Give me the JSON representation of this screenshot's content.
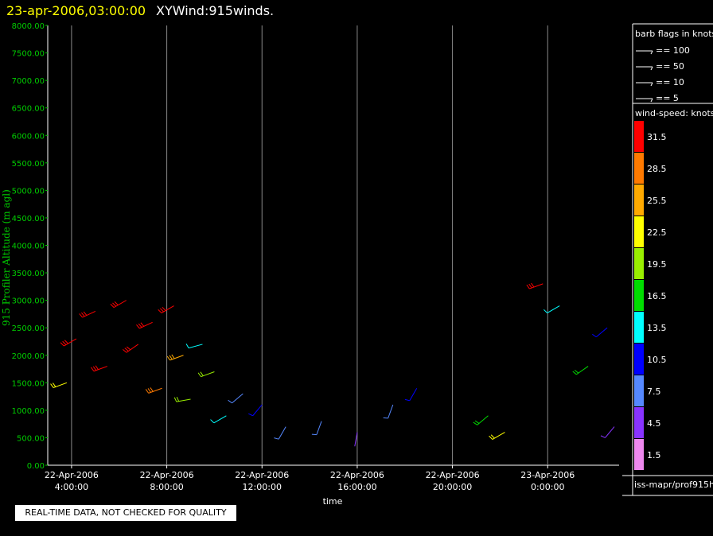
{
  "title": {
    "date": "23-apr-2006,03:00:00",
    "main": "XYWind:915winds."
  },
  "chart_data": {
    "type": "scatter",
    "ylabel": "915 Profiler Altitude (m agl)",
    "xlabel": "time",
    "ylim": [
      0,
      8000
    ],
    "yticks": [
      "0.00",
      "500.00",
      "1000.00",
      "1500.00",
      "2000.00",
      "2500.00",
      "3000.00",
      "3500.00",
      "4000.00",
      "4500.00",
      "5000.00",
      "5500.00",
      "6000.00",
      "6500.00",
      "7000.00",
      "7500.00",
      "8000.00"
    ],
    "xticks": [
      {
        "date": "22-Apr-2006",
        "time": "4:00:00"
      },
      {
        "date": "22-Apr-2006",
        "time": "8:00:00"
      },
      {
        "date": "22-Apr-2006",
        "time": "12:00:00"
      },
      {
        "date": "22-Apr-2006",
        "time": "16:00:00"
      },
      {
        "date": "22-Apr-2006",
        "time": "20:00:00"
      },
      {
        "date": "23-Apr-2006",
        "time": "0:00:00"
      }
    ],
    "xlim_hours": [
      3.0,
      27.0
    ],
    "grid": "vertical",
    "series": [
      {
        "x": 3.8,
        "y": 1500,
        "speed": 22,
        "dir": 250
      },
      {
        "x": 4.2,
        "y": 2300,
        "speed": 31,
        "dir": 240
      },
      {
        "x": 5.0,
        "y": 2800,
        "speed": 32,
        "dir": 245
      },
      {
        "x": 5.5,
        "y": 1800,
        "speed": 30,
        "dir": 250
      },
      {
        "x": 6.3,
        "y": 3000,
        "speed": 32,
        "dir": 240
      },
      {
        "x": 6.8,
        "y": 2200,
        "speed": 31,
        "dir": 235
      },
      {
        "x": 7.4,
        "y": 2600,
        "speed": 32,
        "dir": 245
      },
      {
        "x": 7.8,
        "y": 1400,
        "speed": 28,
        "dir": 250
      },
      {
        "x": 8.3,
        "y": 2900,
        "speed": 31,
        "dir": 240
      },
      {
        "x": 8.7,
        "y": 2000,
        "speed": 26,
        "dir": 250
      },
      {
        "x": 9.0,
        "y": 1200,
        "speed": 20,
        "dir": 260
      },
      {
        "x": 9.5,
        "y": 2200,
        "speed": 14,
        "dir": 255
      },
      {
        "x": 10.0,
        "y": 1700,
        "speed": 19,
        "dir": 250
      },
      {
        "x": 10.5,
        "y": 900,
        "speed": 12,
        "dir": 240
      },
      {
        "x": 11.2,
        "y": 1300,
        "speed": 8,
        "dir": 230
      },
      {
        "x": 12.0,
        "y": 1100,
        "speed": 9,
        "dir": 220
      },
      {
        "x": 13.0,
        "y": 700,
        "speed": 6,
        "dir": 210
      },
      {
        "x": 14.5,
        "y": 800,
        "speed": 7,
        "dir": 200
      },
      {
        "x": 16.0,
        "y": 600,
        "speed": 3,
        "dir": 190
      },
      {
        "x": 17.5,
        "y": 1100,
        "speed": 8,
        "dir": 200
      },
      {
        "x": 18.5,
        "y": 1400,
        "speed": 11,
        "dir": 210
      },
      {
        "x": 21.5,
        "y": 900,
        "speed": 15,
        "dir": 230
      },
      {
        "x": 22.2,
        "y": 600,
        "speed": 23,
        "dir": 240
      },
      {
        "x": 23.8,
        "y": 3300,
        "speed": 32,
        "dir": 250
      },
      {
        "x": 24.5,
        "y": 2900,
        "speed": 12,
        "dir": 240
      },
      {
        "x": 25.7,
        "y": 1800,
        "speed": 16,
        "dir": 235
      },
      {
        "x": 26.5,
        "y": 2500,
        "speed": 11,
        "dir": 230
      },
      {
        "x": 26.8,
        "y": 700,
        "speed": 5,
        "dir": 220
      }
    ]
  },
  "legend": {
    "barb_title": "barb flags in knots",
    "barb_items": [
      "== 100",
      "== 50",
      "== 10",
      "== 5"
    ],
    "speed_title": "wind-speed: knots",
    "speed_items": [
      {
        "label": "31.5",
        "color": "#ff0000"
      },
      {
        "label": "28.5",
        "color": "#ff7a00"
      },
      {
        "label": "25.5",
        "color": "#ffaa00"
      },
      {
        "label": "22.5",
        "color": "#ffff00"
      },
      {
        "label": "19.5",
        "color": "#99ee00"
      },
      {
        "label": "16.5",
        "color": "#00dd00"
      },
      {
        "label": "13.5",
        "color": "#00ffff"
      },
      {
        "label": "10.5",
        "color": "#0000ff"
      },
      {
        "label": "7.5",
        "color": "#5588ff"
      },
      {
        "label": "4.5",
        "color": "#8833ff"
      },
      {
        "label": "1.5",
        "color": "#ee88ee"
      }
    ],
    "source": "iss-mapr/prof915h"
  },
  "note": "REAL-TIME DATA, NOT CHECKED FOR QUALITY"
}
